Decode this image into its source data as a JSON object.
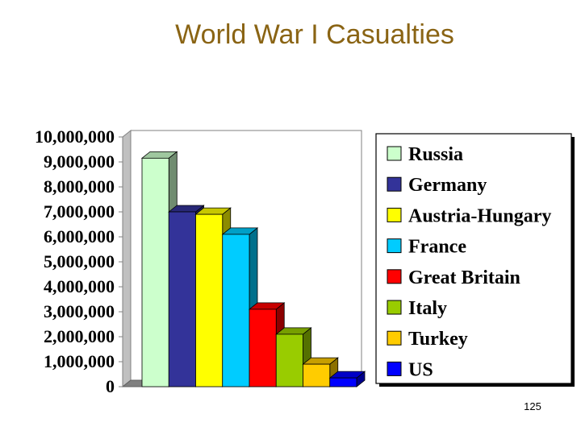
{
  "title": "World War I Casualties",
  "page_number": "125",
  "chart_data": {
    "type": "bar",
    "title": "",
    "xlabel": "",
    "ylabel": "",
    "ylim": [
      0,
      10000000
    ],
    "yticks": [
      "0",
      "1,000,000",
      "2,000,000",
      "3,000,000",
      "4,000,000",
      "5,000,000",
      "6,000,000",
      "7,000,000",
      "8,000,000",
      "9,000,000",
      "10,000,000"
    ],
    "grid": false,
    "style": "3d",
    "legend_position": "right",
    "categories": [
      "Russia",
      "Germany",
      "Austria-Hungary",
      "France",
      "Great Britain",
      "Italy",
      "Turkey",
      "US"
    ],
    "values": [
      9150000,
      7000000,
      6900000,
      6100000,
      3100000,
      2100000,
      900000,
      350000
    ],
    "colors": [
      "#ccffcc",
      "#333399",
      "#ffff00",
      "#00ccff",
      "#ff0000",
      "#99cc00",
      "#ffcc00",
      "#0000ff"
    ]
  }
}
